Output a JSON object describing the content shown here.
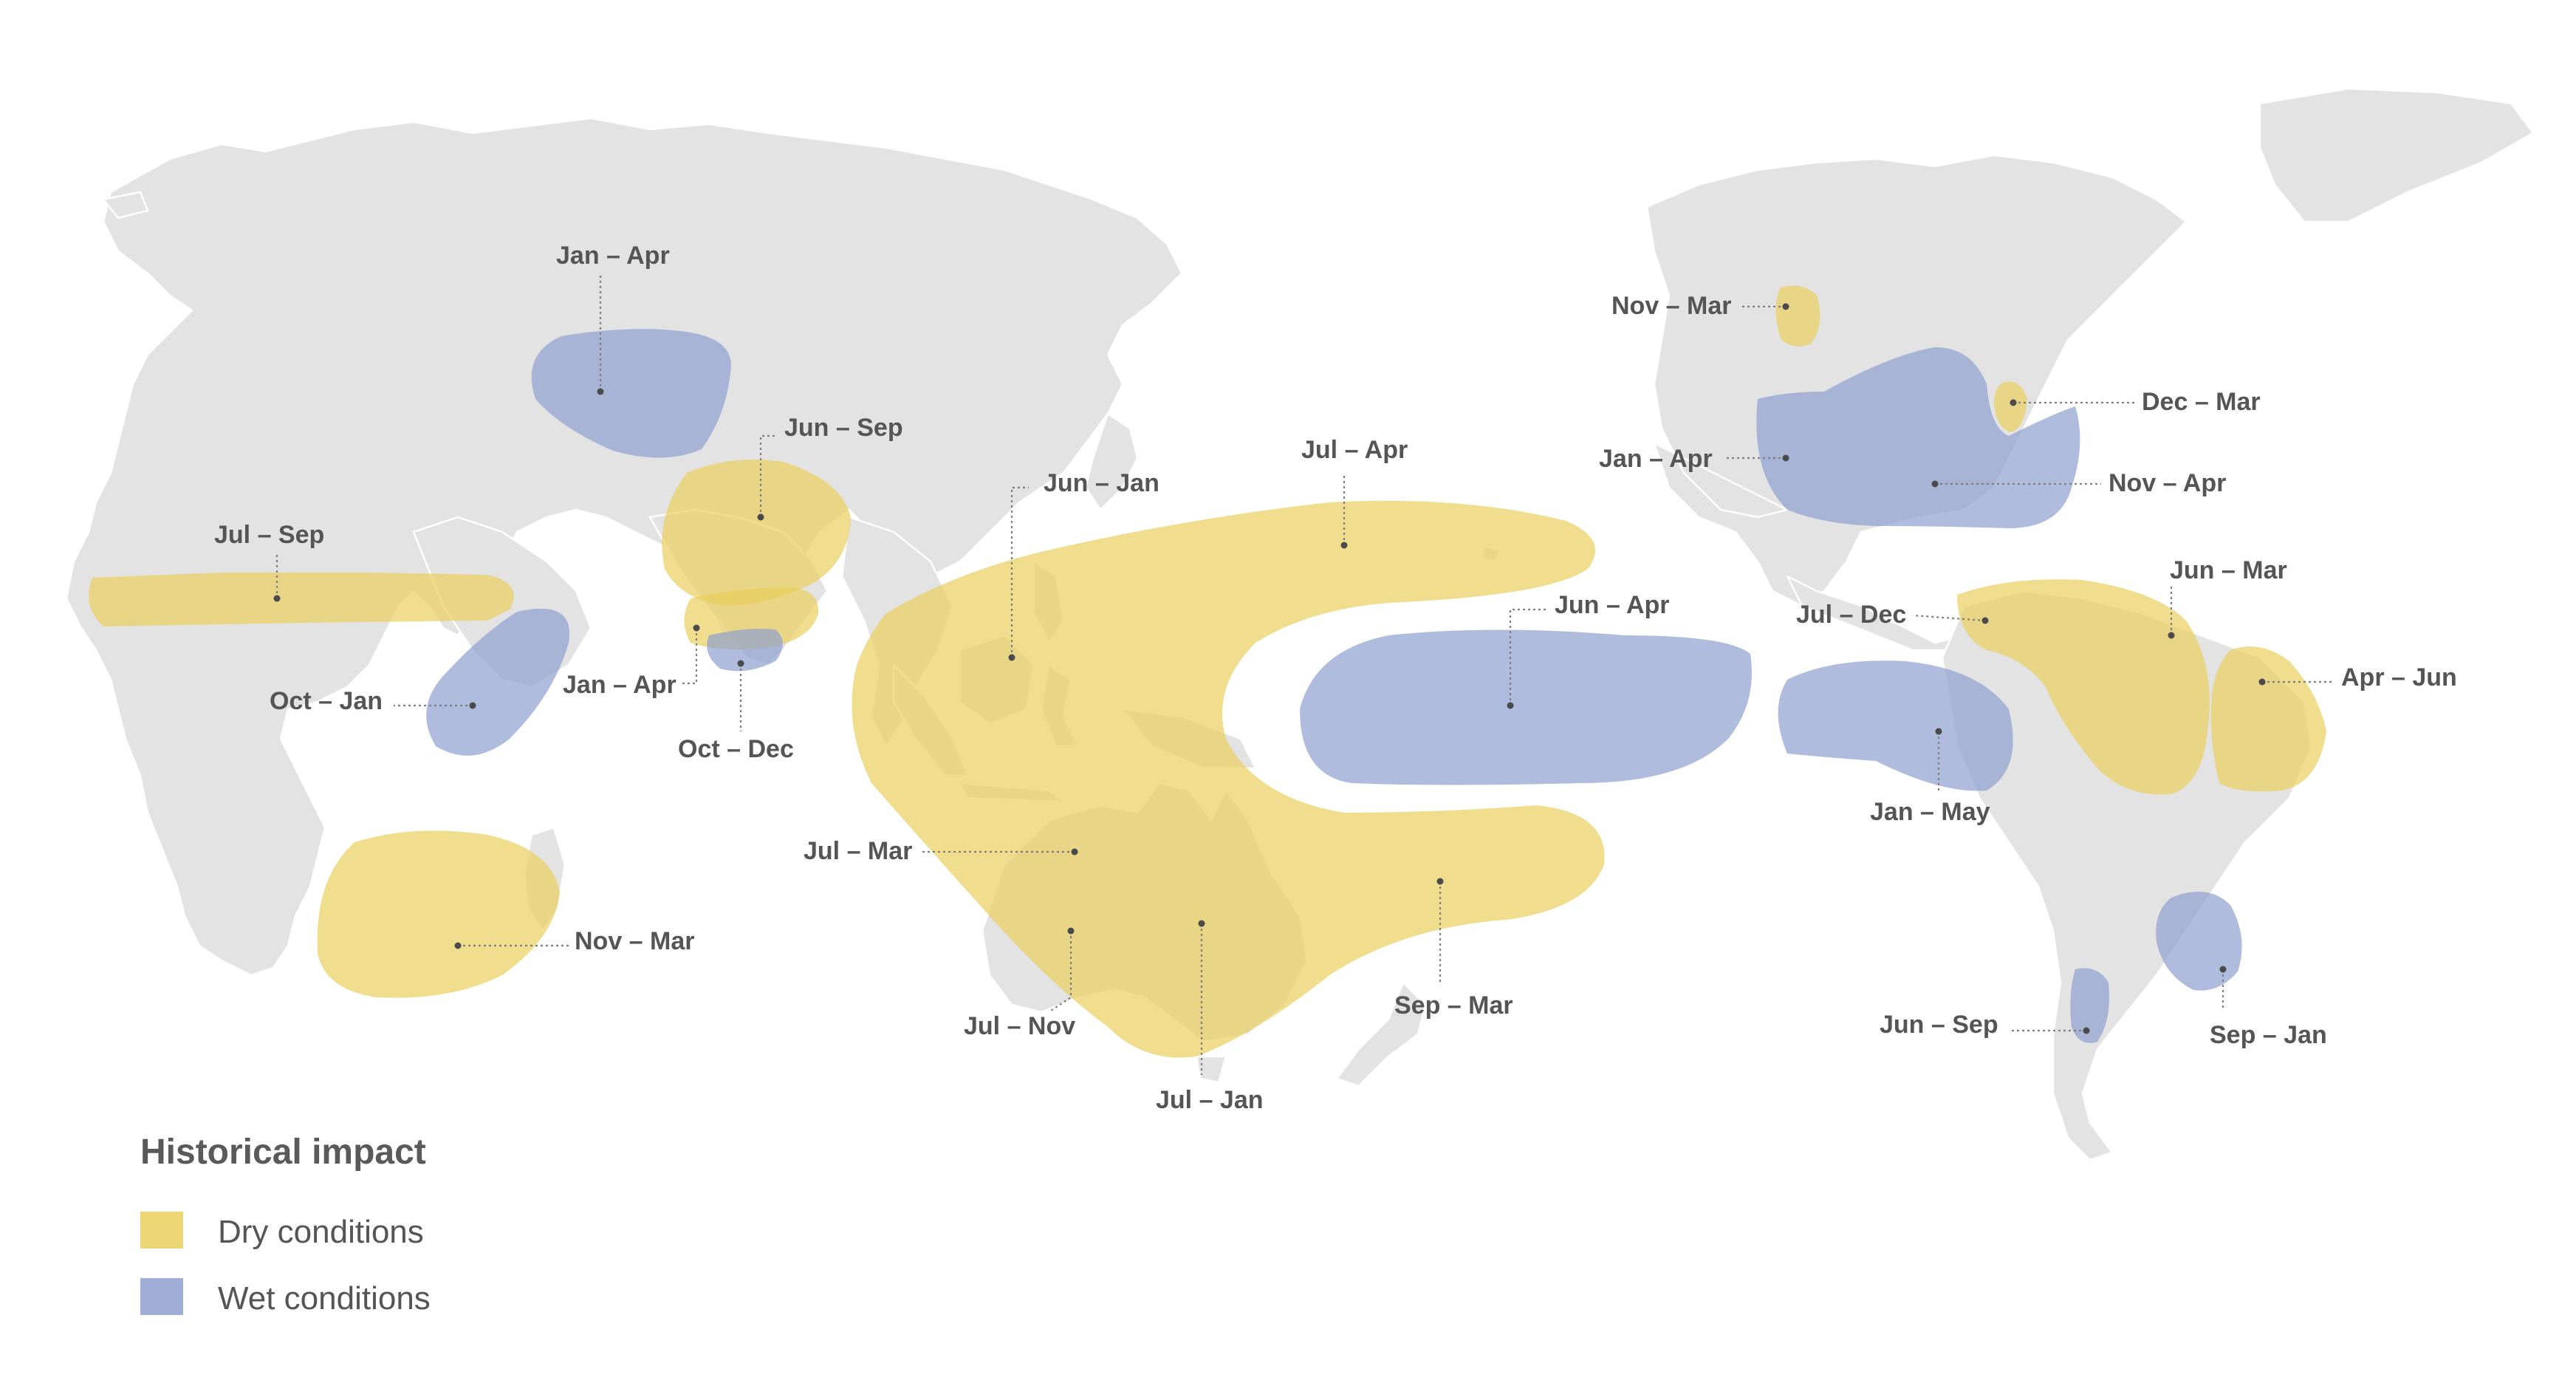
{
  "colors": {
    "land": "#e3e3e3",
    "dry": "#e9cf5e",
    "wet": "#8e9fd0",
    "label": "#555555"
  },
  "legend": {
    "title": "Historical impact",
    "dry_label": "Dry conditions",
    "wet_label": "Wet conditions"
  },
  "regions": [
    {
      "id": "west-sahel",
      "type": "dry",
      "label": "Jul – Sep"
    },
    {
      "id": "east-africa",
      "type": "wet",
      "label": "Oct – Jan"
    },
    {
      "id": "southern-africa",
      "type": "dry",
      "label": "Nov – Mar"
    },
    {
      "id": "central-asia",
      "type": "wet",
      "label": "Jan – Apr"
    },
    {
      "id": "india",
      "type": "dry",
      "label": "Jun – Sep"
    },
    {
      "id": "south-india",
      "type": "dry",
      "label": "Jan – Apr"
    },
    {
      "id": "sri-lanka",
      "type": "wet",
      "label": "Oct – Dec"
    },
    {
      "id": "maritime-continent",
      "type": "dry",
      "label": "Jun – Jan"
    },
    {
      "id": "western-pacific",
      "type": "dry",
      "label": "Jul – Apr"
    },
    {
      "id": "northern-australia",
      "type": "dry",
      "label": "Jul – Mar"
    },
    {
      "id": "southeast-australia",
      "type": "dry",
      "label": "Jul – Nov"
    },
    {
      "id": "eastern-australia",
      "type": "dry",
      "label": "Jul – Jan"
    },
    {
      "id": "southwest-pacific",
      "type": "dry",
      "label": "Sep – Mar"
    },
    {
      "id": "central-pacific",
      "type": "wet",
      "label": "Jun – Apr"
    },
    {
      "id": "pacific-northwest",
      "type": "dry",
      "label": "Nov – Mar"
    },
    {
      "id": "ohio-valley",
      "type": "dry",
      "label": "Dec – Mar"
    },
    {
      "id": "southern-us-west",
      "type": "wet",
      "label": "Jan – Apr"
    },
    {
      "id": "southern-us-east",
      "type": "wet",
      "label": "Nov – Apr"
    },
    {
      "id": "central-america",
      "type": "dry",
      "label": "Jul – Dec"
    },
    {
      "id": "northern-south-america",
      "type": "dry",
      "label": "Jun – Mar"
    },
    {
      "id": "northeast-brazil",
      "type": "dry",
      "label": "Apr – Jun"
    },
    {
      "id": "ecuador-peru",
      "type": "wet",
      "label": "Jan – May"
    },
    {
      "id": "southeast-south-america",
      "type": "wet",
      "label": "Sep – Jan"
    },
    {
      "id": "central-chile",
      "type": "wet",
      "label": "Jun – Sep"
    }
  ]
}
